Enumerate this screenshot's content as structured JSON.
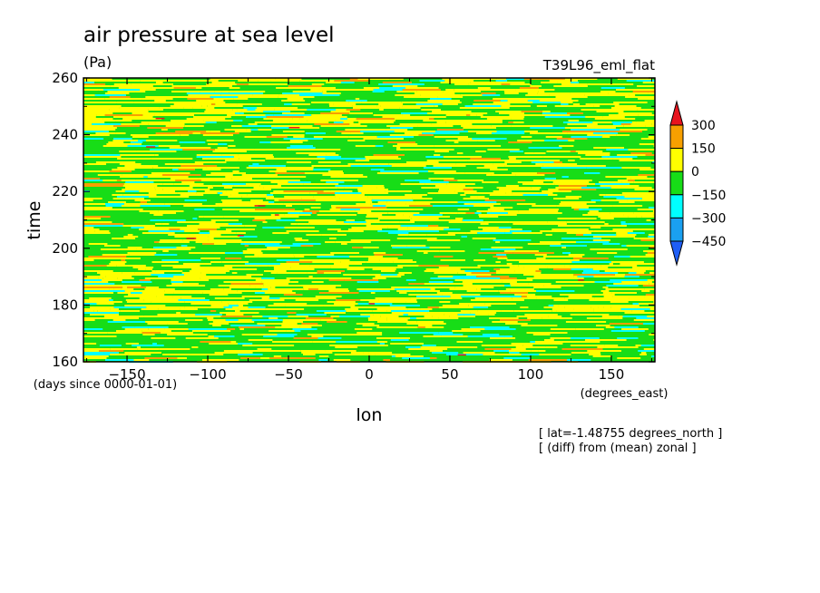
{
  "chart_data": {
    "type": "heatmap",
    "title": "air pressure at sea level",
    "units": "(Pa)",
    "experiment": "T39L96_eml_flat",
    "xlabel": "lon",
    "x_units": "(degrees_east)",
    "ylabel": "time",
    "y_units": "(days since 0000-01-01)",
    "xlim": [
      -177,
      177
    ],
    "ylim": [
      160,
      260
    ],
    "x_ticks": [
      -150,
      -100,
      -50,
      0,
      50,
      100,
      150
    ],
    "y_ticks": [
      160,
      180,
      200,
      220,
      240,
      260
    ],
    "annotations": [
      "[ lat=-1.48755 degrees_north ]",
      "[ (diff) from (mean) zonal ]"
    ],
    "colorbar": {
      "levels": [
        300,
        150,
        0,
        -150,
        -300,
        -450
      ],
      "colors": [
        "#e8141e",
        "#f7a000",
        "#ffff00",
        "#17dd17",
        "#00ffff",
        "#1aa0f0",
        "#1f5ef5"
      ]
    },
    "field_fractions": {
      "orange": 0.04,
      "yellow": 0.36,
      "green": 0.52,
      "cyan": 0.08
    }
  }
}
